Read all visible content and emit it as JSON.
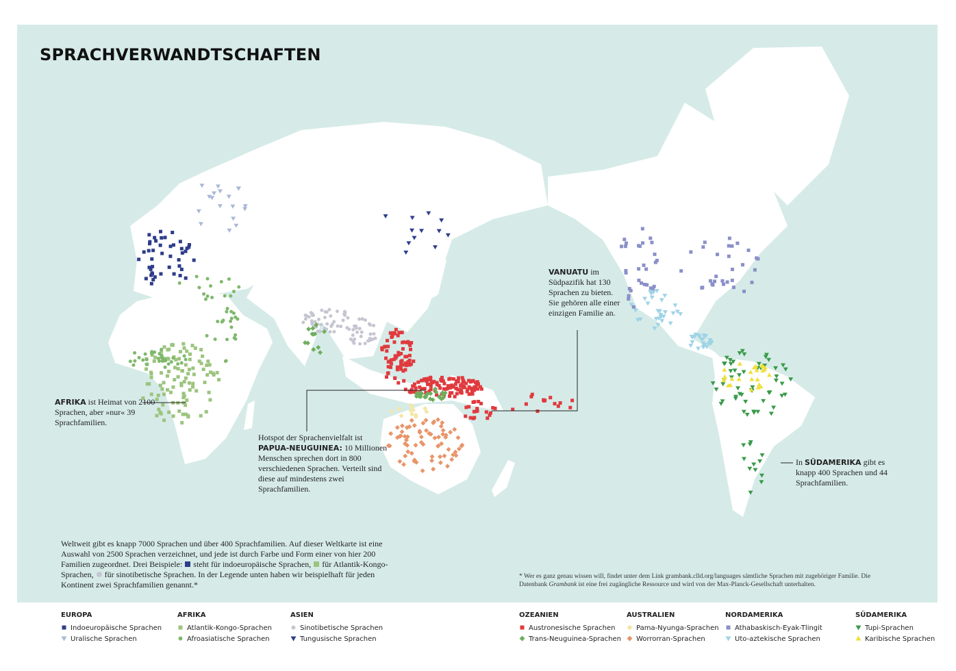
{
  "title": "SPRACHVERWANDTSCHAFTEN",
  "annotations": {
    "africa": [
      "AFRIKA",
      " ist Heimat von 2100 Sprachen, aber »nur« 39 Sprachfamilien."
    ],
    "papua": [
      "Hotspot der Sprachenvielfalt ist ",
      "PAPUA-NEUGUINEA:",
      " 10 Millionen Menschen sprechen dort in 800 verschiedenen Sprachen. Verteilt sind diese auf mindestens zwei Sprachfamilien."
    ],
    "vanuatu": [
      "VANUATU",
      " im Südpazifik hat 130 Sprachen zu bieten. Sie gehören alle einer einzigen Familie an."
    ],
    "south_america": [
      "In ",
      "SÜDAMERIKA",
      " gibt es knapp 400 Sprachen und 44 Sprachfamilien."
    ]
  },
  "intro": [
    "Weltweit gibt es knapp 7000 Sprachen und über 400 Sprachfamilien. Auf dieser Weltkarte ist eine Auswahl von 2500 Sprachen verzeichnet, und jede ist durch Farbe und Form einer von hier 200 Familien zugeordnet. Drei Beispiele:",
    "steht für indoeuropäische Sprachen,",
    "für Atlantik-Kongo-Sprachen,",
    "für sinotibetische Sprachen. In der Legende unten haben wir beispielhaft für jeden Kontinent zwei Sprachfamilien genannt.*"
  ],
  "footnote": [
    "* Wer es ganz genau wissen will, findet unter dem Link grambank.clld.org/languages sämtliche Sprachen mit zugehöriger Familie. Die Datenbank ",
    "Grambank",
    " ist eine frei zugängliche Ressource und wird von der Max-Planck-Gesellschaft unterhalten."
  ],
  "legend": [
    {
      "region": "EUROPA",
      "items": [
        {
          "label": "Indoeuropäische Sprachen",
          "color": "#2e3d8a",
          "shape": "square"
        },
        {
          "label": "Uralische Sprachen",
          "color": "#a9b8d8",
          "shape": "triangle-down"
        }
      ]
    },
    {
      "region": "AFRIKA",
      "items": [
        {
          "label": "Atlantik-Kongo-Sprachen",
          "color": "#9cc47e",
          "shape": "square"
        },
        {
          "label": "Afroasiatische Sprachen",
          "color": "#7fb86c",
          "shape": "circle"
        }
      ]
    },
    {
      "region": "ASIEN",
      "items": [
        {
          "label": "Sinotibetische Sprachen",
          "color": "#c6c6d2",
          "shape": "circle"
        },
        {
          "label": "Tungusische Sprachen",
          "color": "#2d3e8c",
          "shape": "triangle-down"
        }
      ]
    },
    {
      "region": "OZEANIEN",
      "items": [
        {
          "label": "Austronesische Sprachen",
          "color": "#e03a3e",
          "shape": "square"
        },
        {
          "label": "Trans-Neuguinea-Sprachen",
          "color": "#6fae5e",
          "shape": "diamond"
        }
      ]
    },
    {
      "region": "AUSTRALIEN",
      "items": [
        {
          "label": "Pama-Nyunga-Sprachen",
          "color": "#f3e6a8",
          "shape": "diamond"
        },
        {
          "label": "Worrorran-Sprachen",
          "color": "#e8956a",
          "shape": "diamond"
        }
      ]
    },
    {
      "region": "NORDAMERIKA",
      "items": [
        {
          "label": "Athabaskisch-Eyak-Tlingit",
          "color": "#8b90c8",
          "shape": "square"
        },
        {
          "label": "Uto-aztekische Sprachen",
          "color": "#9fd3e6",
          "shape": "triangle-down"
        }
      ]
    },
    {
      "region": "SÜDAMERIKA",
      "items": [
        {
          "label": "Tupi-Sprachen",
          "color": "#3a9a4a",
          "shape": "triangle-down"
        },
        {
          "label": "Karibische Sprachen",
          "color": "#efe03a",
          "shape": "triangle-up"
        }
      ]
    }
  ]
}
